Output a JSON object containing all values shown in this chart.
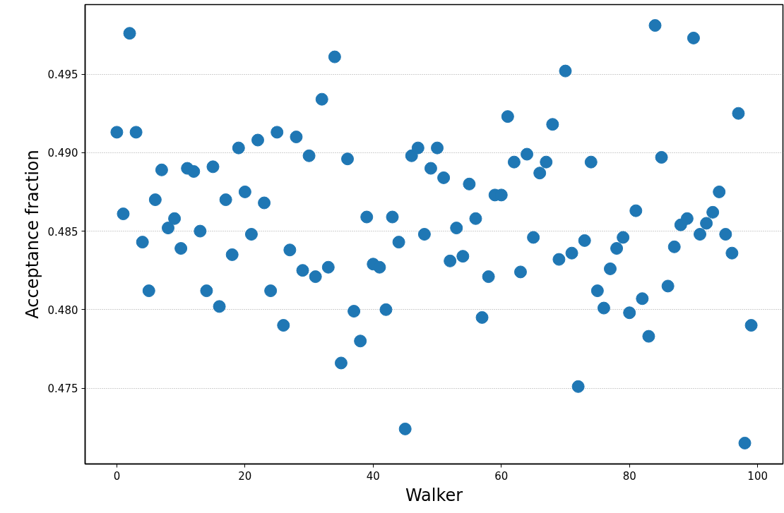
{
  "chart_data": {
    "type": "scatter",
    "xlabel": "Walker",
    "ylabel": "Acceptance fraction",
    "x": [
      0,
      1,
      2,
      3,
      4,
      5,
      6,
      7,
      8,
      9,
      10,
      11,
      12,
      13,
      14,
      15,
      16,
      17,
      18,
      19,
      20,
      21,
      22,
      23,
      24,
      25,
      26,
      27,
      28,
      29,
      30,
      31,
      32,
      33,
      34,
      35,
      36,
      37,
      38,
      39,
      40,
      41,
      42,
      43,
      44,
      45,
      46,
      47,
      48,
      49,
      50,
      51,
      52,
      53,
      54,
      55,
      56,
      57,
      58,
      59,
      60,
      61,
      62,
      63,
      64,
      65,
      66,
      67,
      68,
      69,
      70,
      71,
      72,
      73,
      74,
      75,
      76,
      77,
      78,
      79,
      80,
      81,
      82,
      83,
      84,
      85,
      86,
      87,
      88,
      89,
      90,
      91,
      92,
      93,
      94,
      95,
      96,
      97,
      98,
      99
    ],
    "values": [
      0.4913,
      0.4861,
      0.4976,
      0.4913,
      0.4843,
      0.4812,
      0.487,
      0.4889,
      0.4852,
      0.4858,
      0.4839,
      0.489,
      0.4888,
      0.485,
      0.4812,
      0.4891,
      0.4802,
      0.487,
      0.4835,
      0.4903,
      0.4875,
      0.4848,
      0.4908,
      0.4868,
      0.4812,
      0.4913,
      0.479,
      0.4838,
      0.491,
      0.4825,
      0.4898,
      0.4821,
      0.4934,
      0.4827,
      0.4961,
      0.4766,
      0.4896,
      0.4799,
      0.478,
      0.4859,
      0.4829,
      0.4827,
      0.48,
      0.4859,
      0.4843,
      0.4724,
      0.4898,
      0.4903,
      0.4848,
      0.489,
      0.4903,
      0.4884,
      0.4831,
      0.4852,
      0.4834,
      0.488,
      0.4858,
      0.4795,
      0.4821,
      0.4873,
      0.4873,
      0.4923,
      0.4894,
      0.4824,
      0.4899,
      0.4846,
      0.4887,
      0.4894,
      0.4918,
      0.4832,
      0.4952,
      0.4836,
      0.4751,
      0.4844,
      0.4894,
      0.4812,
      0.4801,
      0.4826,
      0.4839,
      0.4846,
      0.4798,
      0.4863,
      0.4807,
      0.4783,
      0.4981,
      0.4897,
      0.4815,
      0.484,
      0.4854,
      0.4858,
      0.4973,
      0.4848,
      0.4855,
      0.4862,
      0.4875,
      0.4848,
      0.4836,
      0.4925,
      0.4715,
      0.479
    ],
    "color": "#1f77b4",
    "marker": "circle",
    "xlim": [
      -4.95,
      103.95
    ],
    "ylim": [
      0.47017,
      0.49943
    ],
    "xticks": [
      0,
      20,
      40,
      60,
      80,
      100
    ],
    "yticks": [
      0.475,
      {
        "value": 0.48,
        "label": "0.480"
      },
      0.485,
      {
        "value": 0.49,
        "label": "0.490"
      },
      0.495
    ],
    "grid": "y"
  }
}
